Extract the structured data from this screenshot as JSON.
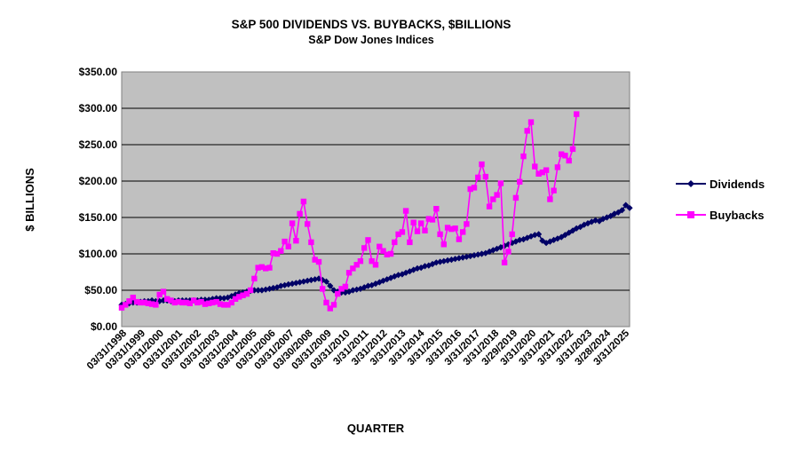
{
  "chart_data": {
    "type": "line",
    "title": "S&P 500 DIVIDENDS VS. BUYBACKS,  $BILLIONS",
    "subtitle": "S&P Dow Jones Indices",
    "xlabel": "QUARTER",
    "ylabel": "$ BILLIONS",
    "ylim": [
      0,
      350
    ],
    "yticks": [
      0,
      50,
      100,
      150,
      200,
      250,
      300,
      350
    ],
    "ytick_labels": [
      "$0.00",
      "$50.00",
      "$100.00",
      "$150.00",
      "$200.00",
      "$250.00",
      "$300.00",
      "$350.00"
    ],
    "xtick_labels": [
      "03/31/1998",
      "03/31/1999",
      "03/31/2000",
      "03/31/2001",
      "03/31/2002",
      "03/31/2003",
      "03/31/2004",
      "03/31/2005",
      "03/31/2006",
      "03/31/2007",
      "03/30/2008",
      "03/31/2009",
      "03/31/2010",
      "3/31/2011",
      "3/31/2012",
      "3/31/2013",
      "3/31/2014",
      "3/31/2015",
      "3/31/2016",
      "3/31/2017",
      "3/31/2018",
      "3/29/2019",
      "3/31/2020",
      "3/31/2021",
      "3/31/2022",
      "3/31/2023",
      "3/28/2024",
      "3/31/2025"
    ],
    "grid": true,
    "plot_background": "#c0c0c0",
    "legend_position": "right",
    "series": [
      {
        "name": "Dividends",
        "color": "#000066",
        "marker": "diamond",
        "values": [
          30,
          31,
          32,
          33,
          33,
          34,
          35,
          35,
          36,
          35,
          35,
          36,
          36,
          35,
          35,
          36,
          36,
          36,
          36,
          36,
          36,
          37,
          37,
          37,
          38,
          39,
          39,
          39,
          40,
          42,
          44,
          46,
          47,
          48,
          49,
          50,
          50,
          50,
          51,
          52,
          53,
          54,
          56,
          57,
          58,
          59,
          60,
          61,
          62,
          63,
          64,
          65,
          66,
          64,
          62,
          56,
          50,
          48,
          47,
          47,
          48,
          50,
          51,
          52,
          54,
          56,
          57,
          59,
          61,
          63,
          65,
          67,
          69,
          71,
          72,
          74,
          76,
          78,
          80,
          81,
          83,
          84,
          86,
          88,
          89,
          90,
          91,
          92,
          93,
          94,
          95,
          96,
          97,
          98,
          99,
          100,
          101,
          103,
          105,
          107,
          109,
          111,
          113,
          115,
          117,
          119,
          120,
          122,
          124,
          126,
          127,
          118,
          115,
          117,
          119,
          121,
          123,
          126,
          129,
          132,
          135,
          137,
          140,
          142,
          144,
          146,
          145,
          148,
          150,
          152,
          155,
          157,
          160,
          167,
          163
        ]
      },
      {
        "name": "Buybacks",
        "color": "#ff00ff",
        "marker": "square",
        "values": [
          26,
          30,
          35,
          40,
          34,
          33,
          33,
          32,
          31,
          30,
          44,
          48,
          38,
          36,
          33,
          34,
          33,
          33,
          32,
          36,
          33,
          34,
          31,
          32,
          33,
          34,
          31,
          30,
          30,
          33,
          38,
          41,
          43,
          45,
          50,
          66,
          81,
          82,
          80,
          81,
          101,
          100,
          104,
          117,
          110,
          142,
          118,
          155,
          172,
          141,
          116,
          92,
          89,
          52,
          33,
          25,
          30,
          45,
          52,
          55,
          74,
          80,
          85,
          90,
          108,
          119,
          90,
          85,
          110,
          104,
          99,
          100,
          116,
          127,
          130,
          159,
          116,
          143,
          131,
          142,
          132,
          148,
          147,
          162,
          127,
          113,
          136,
          134,
          135,
          120,
          130,
          141,
          189,
          191,
          205,
          223,
          206,
          165,
          175,
          181,
          197,
          88,
          103,
          127,
          177,
          199,
          234,
          269,
          281,
          220,
          210,
          212,
          215,
          175,
          187,
          219,
          237,
          235,
          228,
          244,
          292
        ]
      }
    ]
  }
}
